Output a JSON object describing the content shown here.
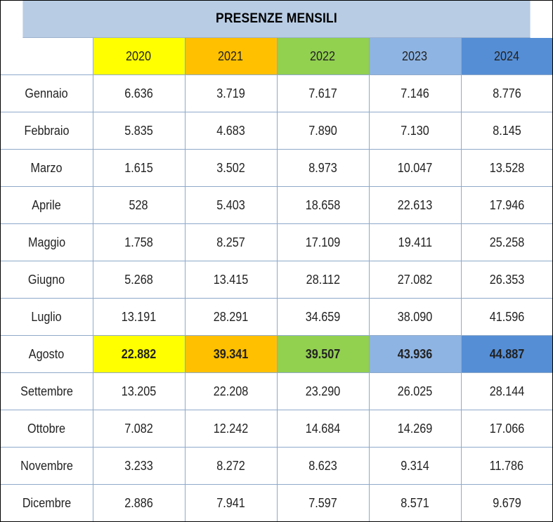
{
  "title": "PRESENZE MENSILI",
  "years": [
    {
      "label": "2020",
      "color": "#ffff00"
    },
    {
      "label": "2021",
      "color": "#ffc000"
    },
    {
      "label": "2022",
      "color": "#92d050"
    },
    {
      "label": "2023",
      "color": "#8eb4e3"
    },
    {
      "label": "2024",
      "color": "#558ed5"
    }
  ],
  "highlight_month": "Agosto",
  "rows": [
    {
      "month": "Gennaio",
      "values": [
        "6.636",
        "3.719",
        "7.617",
        "7.146",
        "8.776"
      ]
    },
    {
      "month": "Febbraio",
      "values": [
        "5.835",
        "4.683",
        "7.890",
        "7.130",
        "8.145"
      ]
    },
    {
      "month": "Marzo",
      "values": [
        "1.615",
        "3.502",
        "8.973",
        "10.047",
        "13.528"
      ]
    },
    {
      "month": "Aprile",
      "values": [
        "528",
        "5.403",
        "18.658",
        "22.613",
        "17.946"
      ]
    },
    {
      "month": "Maggio",
      "values": [
        "1.758",
        "8.257",
        "17.109",
        "19.411",
        "25.258"
      ]
    },
    {
      "month": "Giugno",
      "values": [
        "5.268",
        "13.415",
        "28.112",
        "27.082",
        "26.353"
      ]
    },
    {
      "month": "Luglio",
      "values": [
        "13.191",
        "28.291",
        "34.659",
        "38.090",
        "41.596"
      ]
    },
    {
      "month": "Agosto",
      "values": [
        "22.882",
        "39.341",
        "39.507",
        "43.936",
        "44.887"
      ]
    },
    {
      "month": "Settembre",
      "values": [
        "13.205",
        "22.208",
        "23.290",
        "26.025",
        "28.144"
      ]
    },
    {
      "month": "Ottobre",
      "values": [
        "7.082",
        "12.242",
        "14.684",
        "14.269",
        "17.066"
      ]
    },
    {
      "month": "Novembre",
      "values": [
        "3.233",
        "8.272",
        "8.623",
        "9.314",
        "11.786"
      ]
    },
    {
      "month": "Dicembre",
      "values": [
        "2.886",
        "7.941",
        "7.597",
        "8.571",
        "9.679"
      ]
    }
  ]
}
